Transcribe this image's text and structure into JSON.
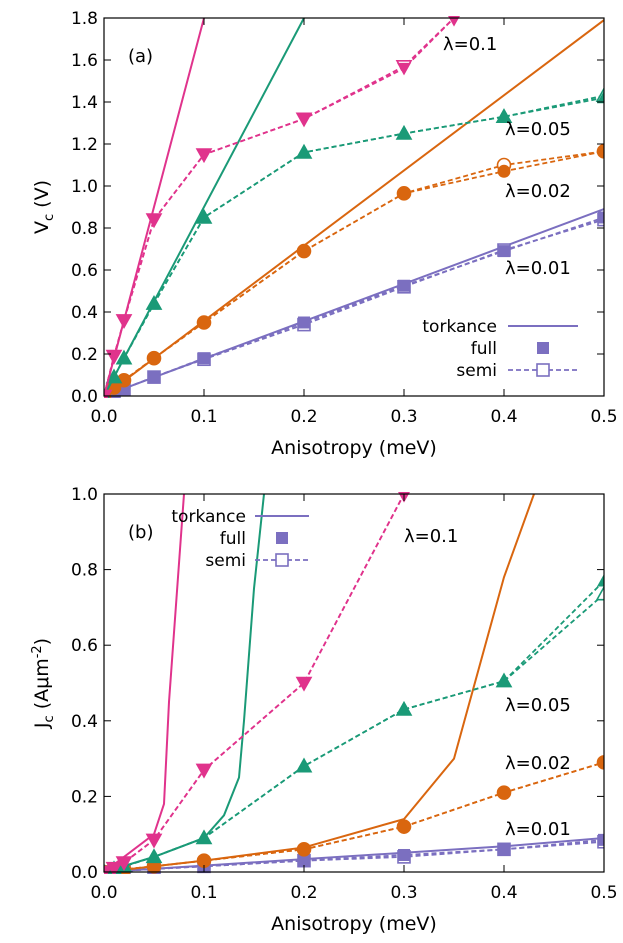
{
  "colors": {
    "l01": "#7b6fc0",
    "l002": "#d9660f",
    "l005": "#1a9a77",
    "l0_1": "#e0338c",
    "axis": "#000000"
  },
  "chart_data": [
    {
      "type": "line",
      "panel_label": "(a)",
      "xlabel": "Anisotropy (meV)",
      "ylabel": "V",
      "ylabel_sub": "c",
      "ylabel_unit": " (V)",
      "xlim": [
        0.0,
        0.5
      ],
      "ylim": [
        0.0,
        1.8
      ],
      "xticks": [
        "0.0",
        "0.1",
        "0.2",
        "0.3",
        "0.4",
        "0.5"
      ],
      "yticks": [
        "0.0",
        "0.2",
        "0.4",
        "0.6",
        "0.8",
        "1.0",
        "1.2",
        "1.4",
        "1.6",
        "1.8"
      ],
      "legend": {
        "placement": "bottom-right",
        "torkance": "torkance",
        "full": "full",
        "semi": "semi"
      },
      "series": [
        {
          "lambda_label": "λ=0.01",
          "color_key": "l01",
          "marker": "square",
          "torkance": {
            "x": [
              0.0,
              0.5
            ],
            "y": [
              0.0,
              0.89
            ]
          },
          "full": {
            "x": [
              0.0,
              0.01,
              0.02,
              0.05,
              0.1,
              0.2,
              0.3,
              0.4,
              0.5
            ],
            "y": [
              0.0,
              0.02,
              0.035,
              0.09,
              0.18,
              0.35,
              0.525,
              0.69,
              0.85
            ]
          },
          "semi": {
            "x": [
              0.0,
              0.01,
              0.02,
              0.05,
              0.1,
              0.2,
              0.3,
              0.4,
              0.5
            ],
            "y": [
              0.0,
              0.02,
              0.035,
              0.09,
              0.175,
              0.34,
              0.52,
              0.695,
              0.84
            ]
          }
        },
        {
          "lambda_label": "λ=0.02",
          "color_key": "l002",
          "marker": "circle",
          "torkance": {
            "x": [
              0.0,
              0.5
            ],
            "y": [
              0.0,
              1.79
            ]
          },
          "full": {
            "x": [
              0.0,
              0.01,
              0.02,
              0.05,
              0.1,
              0.2,
              0.3,
              0.4,
              0.5
            ],
            "y": [
              0.0,
              0.04,
              0.075,
              0.18,
              0.35,
              0.69,
              0.965,
              1.07,
              1.165
            ]
          },
          "semi": {
            "x": [
              0.0,
              0.01,
              0.02,
              0.05,
              0.1,
              0.2,
              0.3,
              0.4,
              0.5
            ],
            "y": [
              0.0,
              0.04,
              0.075,
              0.18,
              0.35,
              0.69,
              0.965,
              1.1,
              1.165
            ]
          }
        },
        {
          "lambda_label": "λ=0.05",
          "color_key": "l005",
          "marker": "triangle-up",
          "torkance": {
            "x": [
              0.0,
              0.2
            ],
            "y": [
              0.0,
              1.8
            ]
          },
          "full": {
            "x": [
              0.0,
              0.01,
              0.02,
              0.05,
              0.1,
              0.2,
              0.3,
              0.4,
              0.5
            ],
            "y": [
              0.0,
              0.09,
              0.18,
              0.44,
              0.85,
              1.16,
              1.25,
              1.33,
              1.42
            ]
          },
          "semi": {
            "x": [
              0.0,
              0.01,
              0.02,
              0.05,
              0.1,
              0.2,
              0.3,
              0.4,
              0.5
            ],
            "y": [
              0.0,
              0.09,
              0.18,
              0.44,
              0.85,
              1.16,
              1.25,
              1.33,
              1.43
            ]
          }
        },
        {
          "lambda_label": "λ=0.1",
          "color_key": "l0_1",
          "marker": "triangle-down",
          "torkance": {
            "x": [
              0.0,
              0.1
            ],
            "y": [
              0.0,
              1.8
            ]
          },
          "full": {
            "x": [
              0.0,
              0.01,
              0.02,
              0.05,
              0.1,
              0.2,
              0.3,
              0.35
            ],
            "y": [
              0.0,
              0.19,
              0.36,
              0.84,
              1.15,
              1.32,
              1.56,
              1.8
            ]
          },
          "semi": {
            "x": [
              0.0,
              0.01,
              0.02,
              0.05,
              0.1,
              0.2,
              0.3,
              0.35
            ],
            "y": [
              0.0,
              0.19,
              0.36,
              0.84,
              1.15,
              1.32,
              1.57,
              1.8
            ]
          }
        }
      ]
    },
    {
      "type": "line",
      "panel_label": "(b)",
      "xlabel": "Anisotropy (meV)",
      "ylabel": "J",
      "ylabel_sub": "c",
      "ylabel_unit": " (Aμm",
      "ylabel_sup": "-2",
      "ylabel_tail": ")",
      "xlim": [
        0.0,
        0.5
      ],
      "ylim": [
        0.0,
        1.0
      ],
      "xticks": [
        "0.0",
        "0.1",
        "0.2",
        "0.3",
        "0.4",
        "0.5"
      ],
      "yticks": [
        "0.0",
        "0.2",
        "0.4",
        "0.6",
        "0.8",
        "1.0"
      ],
      "legend": {
        "placement": "top-left",
        "torkance": "torkance",
        "full": "full",
        "semi": "semi"
      },
      "series": [
        {
          "lambda_label": "λ=0.01",
          "color_key": "l01",
          "marker": "square",
          "torkance": {
            "x": [
              0.0,
              0.1,
              0.2,
              0.3,
              0.4,
              0.5
            ],
            "y": [
              0.0,
              0.017,
              0.034,
              0.051,
              0.068,
              0.09
            ]
          },
          "full": {
            "x": [
              0.0,
              0.01,
              0.02,
              0.05,
              0.1,
              0.2,
              0.3,
              0.4,
              0.5
            ],
            "y": [
              0.0,
              0.001,
              0.003,
              0.008,
              0.015,
              0.03,
              0.045,
              0.06,
              0.085
            ]
          },
          "semi": {
            "x": [
              0.0,
              0.01,
              0.02,
              0.05,
              0.1,
              0.2,
              0.3,
              0.4,
              0.5
            ],
            "y": [
              0.0,
              0.001,
              0.003,
              0.008,
              0.015,
              0.03,
              0.04,
              0.06,
              0.08
            ]
          }
        },
        {
          "lambda_label": "λ=0.02",
          "color_key": "l002",
          "marker": "circle",
          "torkance": {
            "x": [
              0.0,
              0.1,
              0.2,
              0.3,
              0.35,
              0.4,
              0.43
            ],
            "y": [
              0.0,
              0.03,
              0.065,
              0.14,
              0.3,
              0.78,
              1.0
            ]
          },
          "full": {
            "x": [
              0.0,
              0.01,
              0.02,
              0.05,
              0.1,
              0.2,
              0.3,
              0.4,
              0.5
            ],
            "y": [
              0.0,
              0.003,
              0.007,
              0.015,
              0.03,
              0.06,
              0.12,
              0.21,
              0.29
            ]
          },
          "semi": {
            "x": [
              0.0,
              0.01,
              0.02,
              0.05,
              0.1,
              0.2,
              0.3,
              0.4,
              0.5
            ],
            "y": [
              0.0,
              0.003,
              0.007,
              0.015,
              0.03,
              0.06,
              0.12,
              0.21,
              0.29
            ]
          }
        },
        {
          "lambda_label": "λ=0.05",
          "color_key": "l005",
          "marker": "triangle-up",
          "torkance": {
            "x": [
              0.0,
              0.05,
              0.1,
              0.12,
              0.135,
              0.14,
              0.15,
              0.16
            ],
            "y": [
              0.0,
              0.04,
              0.09,
              0.15,
              0.25,
              0.4,
              0.75,
              1.0
            ]
          },
          "full": {
            "x": [
              0.0,
              0.01,
              0.02,
              0.05,
              0.1,
              0.2,
              0.3,
              0.4,
              0.5
            ],
            "y": [
              0.0,
              0.008,
              0.015,
              0.04,
              0.09,
              0.28,
              0.43,
              0.505,
              0.77
            ]
          },
          "semi": {
            "x": [
              0.0,
              0.01,
              0.02,
              0.05,
              0.1,
              0.2,
              0.3,
              0.4,
              0.5
            ],
            "y": [
              0.0,
              0.008,
              0.015,
              0.04,
              0.09,
              0.28,
              0.43,
              0.505,
              0.735
            ]
          }
        },
        {
          "lambda_label": "λ=0.1",
          "color_key": "l0_1",
          "marker": "triangle-down",
          "torkance": {
            "x": [
              0.0,
              0.05,
              0.06,
              0.065,
              0.08
            ],
            "y": [
              0.0,
              0.1,
              0.18,
              0.45,
              1.0
            ]
          },
          "full": {
            "x": [
              0.0,
              0.01,
              0.02,
              0.05,
              0.1,
              0.2,
              0.3
            ],
            "y": [
              0.0,
              0.01,
              0.025,
              0.085,
              0.27,
              0.5,
              1.0
            ]
          },
          "semi": {
            "x": [
              0.0,
              0.01,
              0.02,
              0.05,
              0.1,
              0.2,
              0.3
            ],
            "y": [
              0.0,
              0.01,
              0.025,
              0.085,
              0.27,
              0.5,
              1.0
            ]
          }
        }
      ]
    }
  ]
}
